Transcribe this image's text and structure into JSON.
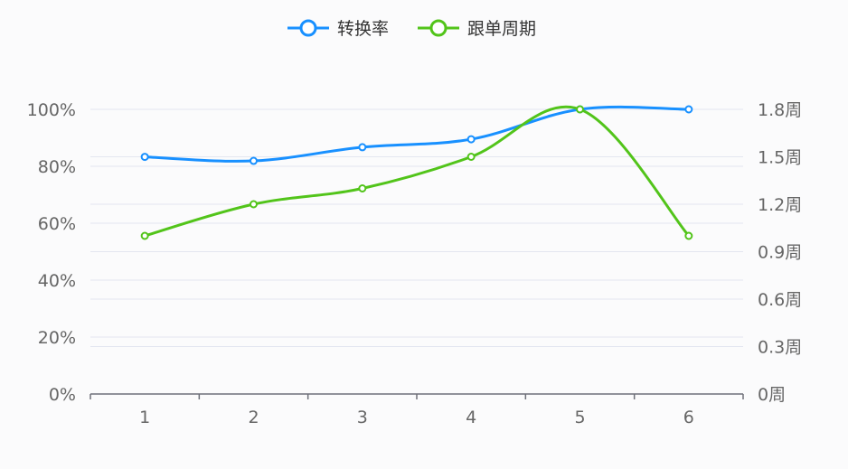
{
  "chart_data": {
    "type": "line",
    "smooth": true,
    "x": [
      "1",
      "2",
      "3",
      "4",
      "5",
      "6"
    ],
    "series": [
      {
        "name": "转换率",
        "axis": "left",
        "color": "#1890ff",
        "values": [
          83.3,
          81.9,
          86.7,
          89.5,
          100,
          100
        ]
      },
      {
        "name": "跟单周期",
        "axis": "right",
        "color": "#52c41a",
        "values": [
          1.0,
          1.2,
          1.3,
          1.5,
          1.8,
          1.0
        ]
      }
    ],
    "y_left": {
      "min": 0,
      "max": 100,
      "ticks": [
        "0%",
        "20%",
        "40%",
        "60%",
        "80%",
        "100%"
      ]
    },
    "y_right": {
      "min": 0,
      "max": 1.8,
      "ticks": [
        "0周",
        "0.3周",
        "0.6周",
        "0.9周",
        "1.2周",
        "1.5周",
        "1.8周"
      ]
    },
    "grid": true,
    "legend_position": "top-center"
  }
}
